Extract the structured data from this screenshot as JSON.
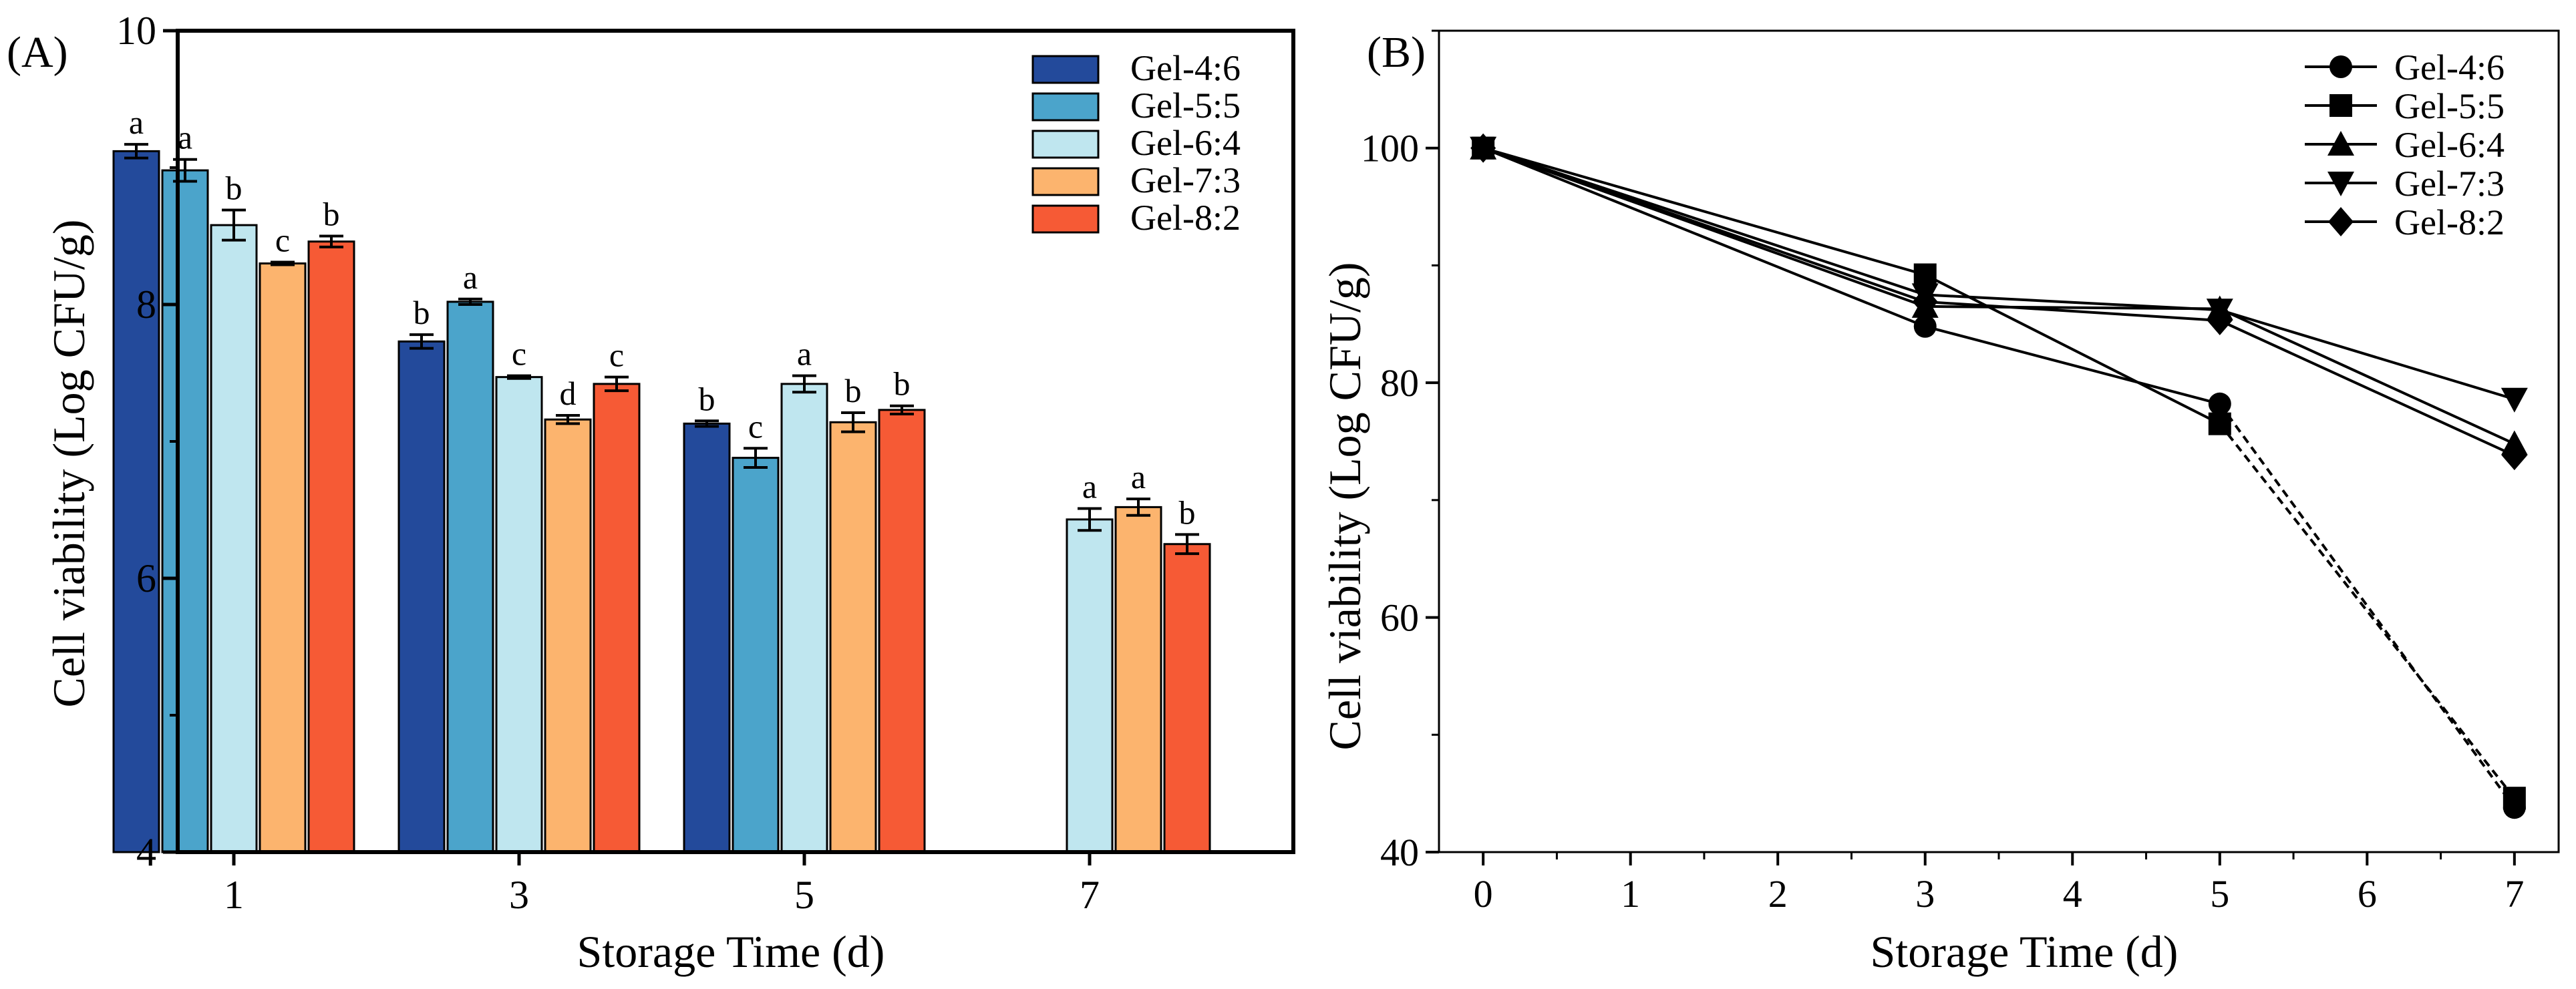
{
  "chart_data": [
    {
      "panel_label": "(A)",
      "type": "bar",
      "title": "",
      "xlabel": "Storage Time (d)",
      "ylabel": "Cell viability (Log CFU/g)",
      "ylim": [
        4,
        10
      ],
      "yticks": [
        4,
        6,
        8,
        10
      ],
      "categories": [
        "1",
        "3",
        "5",
        "7"
      ],
      "legend_position": "top-right",
      "series": [
        {
          "name": "Gel-4:6",
          "color": "#234a9b",
          "values": [
            9.12,
            7.73,
            7.13,
            null
          ],
          "errors": [
            0.05,
            0.05,
            0.02,
            null
          ],
          "letters": [
            "a",
            "b",
            "b",
            null
          ]
        },
        {
          "name": "Gel-5:5",
          "color": "#4ba4cb",
          "values": [
            8.98,
            8.02,
            6.88,
            null
          ],
          "errors": [
            0.08,
            0.02,
            0.07,
            null
          ],
          "letters": [
            "a",
            "a",
            "c",
            null
          ]
        },
        {
          "name": "Gel-6:4",
          "color": "#bfe6ef",
          "values": [
            8.58,
            7.47,
            7.42,
            6.43
          ],
          "errors": [
            0.11,
            0.01,
            0.06,
            0.08
          ],
          "letters": [
            "b",
            "c",
            "a",
            "a"
          ]
        },
        {
          "name": "Gel-7:3",
          "color": "#fcb46e",
          "values": [
            8.3,
            7.16,
            7.14,
            6.52
          ],
          "errors": [
            0.01,
            0.03,
            0.07,
            0.06
          ],
          "letters": [
            "c",
            "d",
            "b",
            "a"
          ]
        },
        {
          "name": "Gel-8:2",
          "color": "#f65a35",
          "values": [
            8.46,
            7.42,
            7.23,
            6.25
          ],
          "errors": [
            0.04,
            0.05,
            0.03,
            0.07
          ],
          "letters": [
            "b",
            "c",
            "b",
            "b"
          ]
        }
      ]
    },
    {
      "panel_label": "(B)",
      "type": "line",
      "title": "",
      "xlabel": "Storage Time (d)",
      "ylabel": "Cell viability (Log CFU/g)",
      "xlim": [
        -0.3,
        7.3
      ],
      "ylim": [
        40,
        110
      ],
      "xticks": [
        0,
        1,
        2,
        3,
        4,
        5,
        6,
        7
      ],
      "yticks": [
        40,
        60,
        80,
        100
      ],
      "legend_position": "top-right",
      "series": [
        {
          "name": "Gel-4:6",
          "marker": "circle",
          "x": [
            0,
            3,
            5,
            7
          ],
          "y": [
            100,
            84.8,
            78.2,
            43.8
          ],
          "dashed_from_index": 2
        },
        {
          "name": "Gel-5:5",
          "marker": "square",
          "x": [
            0,
            3,
            5,
            7
          ],
          "y": [
            100,
            89.2,
            76.5,
            44.6
          ],
          "dashed_from_index": 2
        },
        {
          "name": "Gel-6:4",
          "marker": "triangle-up",
          "x": [
            0,
            3,
            5,
            7
          ],
          "y": [
            100,
            86.5,
            86.3,
            74.8
          ],
          "dashed_from_index": null
        },
        {
          "name": "Gel-7:3",
          "marker": "triangle-down",
          "x": [
            0,
            3,
            5,
            7
          ],
          "y": [
            100,
            87.5,
            86.2,
            78.6
          ],
          "dashed_from_index": null
        },
        {
          "name": "Gel-8:2",
          "marker": "diamond",
          "x": [
            0,
            3,
            5,
            7
          ],
          "y": [
            100,
            86.9,
            85.3,
            73.8
          ],
          "dashed_from_index": null
        }
      ]
    }
  ]
}
